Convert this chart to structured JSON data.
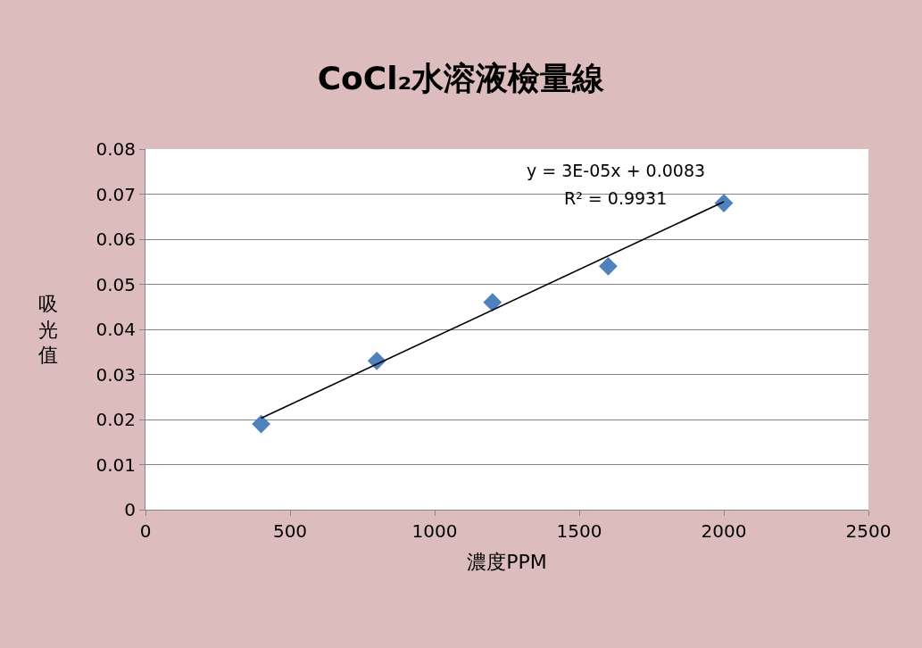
{
  "chart_data": {
    "type": "scatter",
    "title": "CoCl₂水溶液檢量線",
    "xlabel": "濃度PPM",
    "ylabel": "吸光值",
    "x": [
      400,
      800,
      1200,
      1600,
      2000
    ],
    "series": [
      {
        "color": "#4f81bd",
        "marker": "diamond",
        "values": [
          0.019,
          0.033,
          0.046,
          0.054,
          0.068
        ]
      },
      {
        "type": "line",
        "color": "#000000",
        "x": [
          400,
          2000
        ],
        "values": [
          0.0203,
          0.0683
        ],
        "marker": "none",
        "line_style": "solid"
      }
    ],
    "annotations": [
      "y = 3E-05x + 0.0083",
      "R² = 0.9931"
    ],
    "xlim": [
      0,
      2500
    ],
    "xticks": [
      0,
      500,
      1000,
      1500,
      2000,
      2500
    ],
    "ylim": [
      0,
      0.08
    ],
    "yticks": [
      0,
      0.01,
      0.02,
      0.03,
      0.04,
      0.05,
      0.06,
      0.07,
      0.08
    ],
    "grid": "y"
  }
}
